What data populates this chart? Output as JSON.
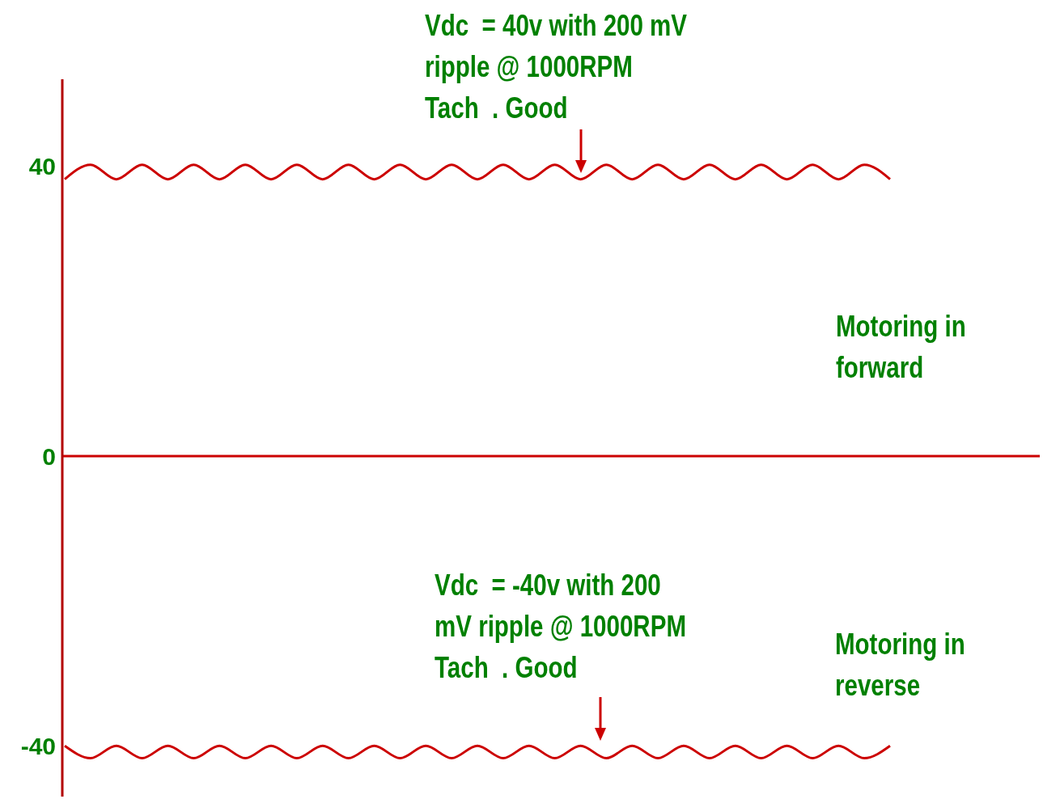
{
  "chart_data": {
    "type": "line",
    "categories": [
      null,
      null,
      null,
      null,
      null,
      null,
      null,
      null,
      null,
      null,
      null,
      null,
      null,
      null,
      null,
      null,
      null,
      null,
      null,
      null,
      null,
      null,
      null,
      null,
      null,
      null,
      null,
      null,
      null,
      null,
      null,
      null,
      null
    ],
    "series": [
      {
        "color": "#cc0000",
        "values": [
          38.2,
          40.2,
          38.2,
          40.2,
          38.2,
          40.2,
          38.2,
          40.2,
          38.2,
          40.2,
          38.2,
          40.2,
          38.2,
          40.2,
          38.2,
          40.2,
          38.2,
          40.2,
          38.2,
          40.2,
          38.2,
          40.2,
          38.2,
          40.2,
          38.2,
          40.2,
          38.2,
          40.2,
          38.2,
          40.2,
          38.2,
          40.2,
          38.2
        ]
      },
      {
        "color": "#cc0000",
        "values": [
          -40,
          -41.7,
          -40,
          -41.7,
          -40,
          -41.7,
          -40,
          -41.7,
          -40,
          -41.7,
          -40,
          -41.7,
          -40,
          -41.7,
          -40,
          -41.7,
          -40,
          -41.7,
          -40,
          -41.7,
          -40,
          -41.7,
          -40,
          -41.7,
          -40,
          -41.7,
          -40,
          -41.7,
          -40,
          -41.7,
          -40,
          -41.7,
          -40
        ]
      }
    ],
    "ylim": [
      -47,
      52
    ],
    "yticks": [
      -40,
      0,
      40
    ],
    "grid": false,
    "legend": false,
    "marker": "none",
    "line_style": "solid",
    "tick_labels": "y",
    "ref_lines": [
      {
        "axis": "y",
        "value": 0,
        "color": "#cc0000"
      }
    ],
    "annotations": [
      "Vdc  = 40v with 200 mV\nripple @ 1000RPM\nTach  . Good",
      "Vdc  = -40v with 200\nmV ripple @ 1000RPM\nTach  . Good",
      "Motoring in\nforward",
      "Motoring in\nreverse"
    ]
  }
}
